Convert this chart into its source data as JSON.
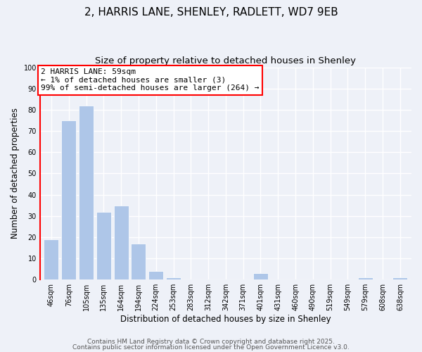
{
  "title": "2, HARRIS LANE, SHENLEY, RADLETT, WD7 9EB",
  "subtitle": "Size of property relative to detached houses in Shenley",
  "xlabel": "Distribution of detached houses by size in Shenley",
  "ylabel": "Number of detached properties",
  "bar_labels": [
    "46sqm",
    "76sqm",
    "105sqm",
    "135sqm",
    "164sqm",
    "194sqm",
    "224sqm",
    "253sqm",
    "283sqm",
    "312sqm",
    "342sqm",
    "371sqm",
    "401sqm",
    "431sqm",
    "460sqm",
    "490sqm",
    "519sqm",
    "549sqm",
    "579sqm",
    "608sqm",
    "638sqm"
  ],
  "bar_values": [
    19,
    75,
    82,
    32,
    35,
    17,
    4,
    1,
    0,
    0,
    0,
    0,
    3,
    0,
    0,
    0,
    0,
    0,
    1,
    0,
    1
  ],
  "bar_color": "#aec6e8",
  "annotation_line1": "2 HARRIS LANE: 59sqm",
  "annotation_line2": "← 1% of detached houses are smaller (3)",
  "annotation_line3": "99% of semi-detached houses are larger (264) →",
  "ylim": [
    0,
    100
  ],
  "yticks": [
    0,
    10,
    20,
    30,
    40,
    50,
    60,
    70,
    80,
    90,
    100
  ],
  "footer_line1": "Contains HM Land Registry data © Crown copyright and database right 2025.",
  "footer_line2": "Contains public sector information licensed under the Open Government Licence v3.0.",
  "background_color": "#eef1f8",
  "grid_color": "#ffffff",
  "title_fontsize": 11,
  "subtitle_fontsize": 9.5,
  "axis_label_fontsize": 8.5,
  "tick_fontsize": 7,
  "annotation_fontsize": 8,
  "footer_fontsize": 6.5
}
